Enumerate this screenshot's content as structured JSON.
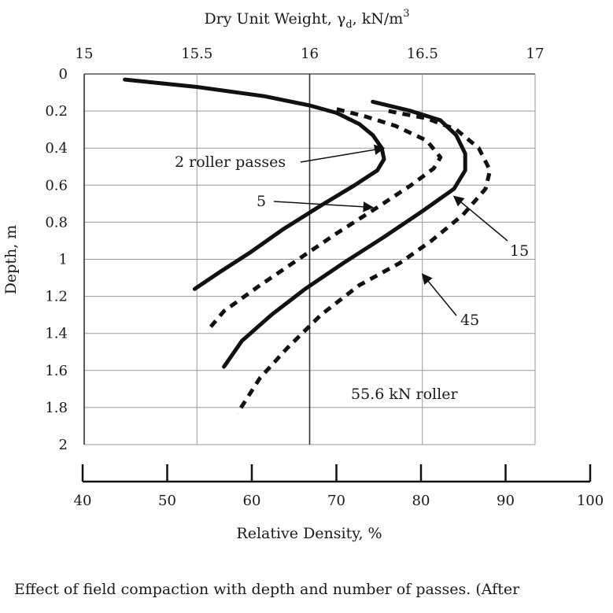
{
  "chart_data": {
    "type": "line",
    "top_axis": {
      "label_main": "Dry Unit Weight, γ",
      "label_sub": "d",
      "label_unit": ", kN/m",
      "label_sup": "3",
      "range": [
        15,
        17
      ],
      "ticks": [
        "15",
        "15.5",
        "16",
        "16.5",
        "17"
      ]
    },
    "left_axis": {
      "label": "Depth, m",
      "range": [
        0,
        2
      ],
      "ticks": [
        "0",
        "0.2",
        "0.4",
        "0.6",
        "0.8",
        "1",
        "1.2",
        "1.4",
        "1.6",
        "1.8",
        "2"
      ]
    },
    "bottom_axis": {
      "label": "Relative Density, %",
      "range": [
        40,
        100
      ],
      "ticks": [
        "40",
        "50",
        "60",
        "70",
        "80",
        "90",
        "100"
      ]
    },
    "grid": true,
    "series": [
      {
        "passes": "2",
        "style": "solid",
        "points": [
          [
            15.18,
            0.03
          ],
          [
            15.5,
            0.07
          ],
          [
            15.8,
            0.12
          ],
          [
            16.0,
            0.17
          ],
          [
            16.12,
            0.21
          ],
          [
            16.22,
            0.27
          ],
          [
            16.28,
            0.33
          ],
          [
            16.32,
            0.4
          ],
          [
            16.33,
            0.46
          ],
          [
            16.3,
            0.52
          ],
          [
            16.2,
            0.6
          ],
          [
            16.05,
            0.71
          ],
          [
            15.88,
            0.84
          ],
          [
            15.74,
            0.96
          ],
          [
            15.6,
            1.07
          ],
          [
            15.49,
            1.16
          ]
        ]
      },
      {
        "passes": "5",
        "style": "dashed",
        "points": [
          [
            16.12,
            0.19
          ],
          [
            16.25,
            0.23
          ],
          [
            16.38,
            0.28
          ],
          [
            16.52,
            0.36
          ],
          [
            16.58,
            0.45
          ],
          [
            16.55,
            0.51
          ],
          [
            16.45,
            0.6
          ],
          [
            16.3,
            0.72
          ],
          [
            16.12,
            0.86
          ],
          [
            15.95,
            1.0
          ],
          [
            15.78,
            1.14
          ],
          [
            15.62,
            1.28
          ],
          [
            15.55,
            1.38
          ]
        ]
      },
      {
        "passes": "15",
        "style": "solid",
        "points": [
          [
            16.28,
            0.15
          ],
          [
            16.45,
            0.2
          ],
          [
            16.58,
            0.25
          ],
          [
            16.65,
            0.33
          ],
          [
            16.69,
            0.43
          ],
          [
            16.69,
            0.52
          ],
          [
            16.64,
            0.62
          ],
          [
            16.5,
            0.74
          ],
          [
            16.33,
            0.88
          ],
          [
            16.15,
            1.02
          ],
          [
            15.98,
            1.16
          ],
          [
            15.83,
            1.3
          ],
          [
            15.7,
            1.44
          ],
          [
            15.62,
            1.58
          ]
        ]
      },
      {
        "passes": "45",
        "style": "dashed",
        "points": [
          [
            16.35,
            0.2
          ],
          [
            16.52,
            0.24
          ],
          [
            16.65,
            0.3
          ],
          [
            16.75,
            0.4
          ],
          [
            16.8,
            0.52
          ],
          [
            16.78,
            0.62
          ],
          [
            16.68,
            0.76
          ],
          [
            16.54,
            0.9
          ],
          [
            16.4,
            1.02
          ],
          [
            16.22,
            1.14
          ],
          [
            16.05,
            1.3
          ],
          [
            15.9,
            1.48
          ],
          [
            15.78,
            1.64
          ],
          [
            15.68,
            1.83
          ]
        ]
      }
    ],
    "annotations": [
      {
        "text": "2 roller passes",
        "arrow_to": [
          16.33,
          0.4
        ]
      },
      {
        "text": "5",
        "arrow_to": [
          16.28,
          0.72
        ]
      },
      {
        "text": "15",
        "arrow_to": [
          16.64,
          0.66
        ]
      },
      {
        "text": "45",
        "arrow_to": [
          16.5,
          1.08
        ]
      },
      {
        "text": "55.6 kN roller",
        "arrow_to": null
      }
    ]
  },
  "caption": "Effect of field compaction with depth and number of passes. (After"
}
